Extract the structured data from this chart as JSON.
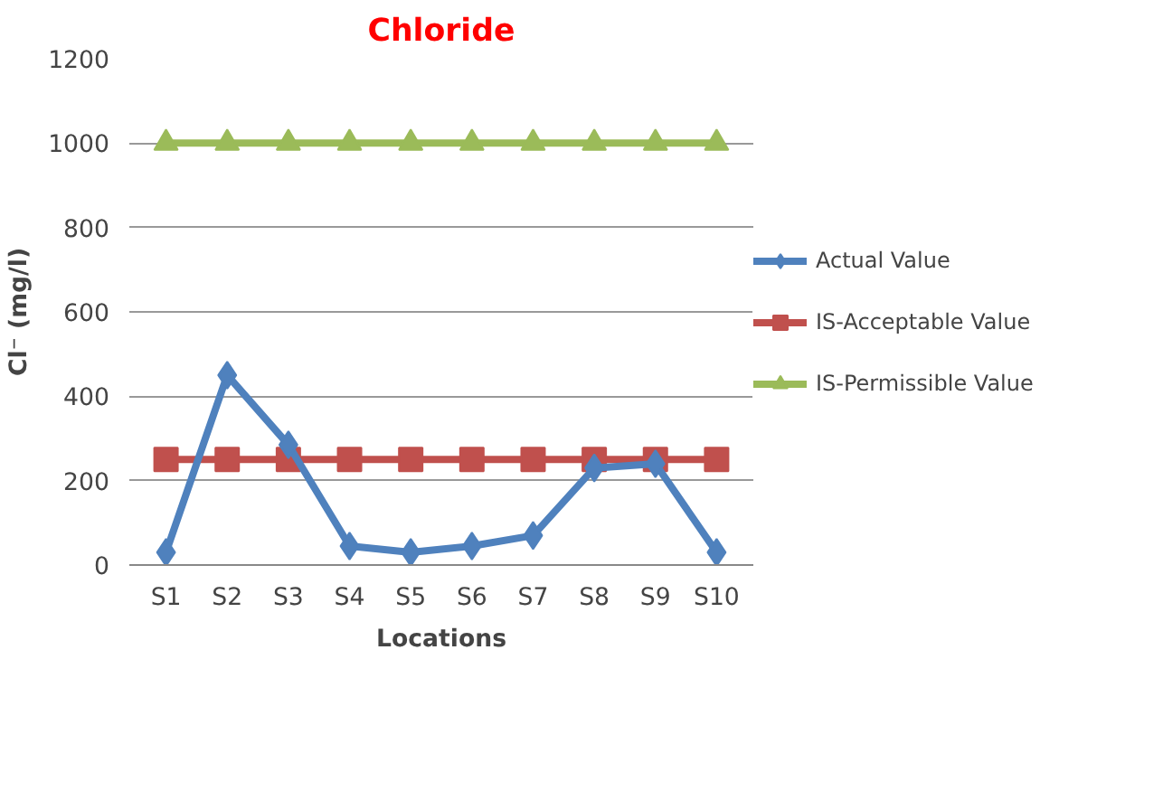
{
  "chart_data": {
    "type": "line",
    "title": "Chloride",
    "xlabel": "Locations",
    "ylabel": "Cl⁻ (mg/l)",
    "categories": [
      "S1",
      "S2",
      "S3",
      "S4",
      "S5",
      "S6",
      "S7",
      "S8",
      "S9",
      "S10"
    ],
    "ylim": [
      0,
      1200
    ],
    "yticks": [
      0,
      200,
      400,
      600,
      800,
      1000,
      1200
    ],
    "grid": "y",
    "legend": "right",
    "series": [
      {
        "name": "Actual Value",
        "color": "#4f81bd",
        "marker": "diamond",
        "values": [
          30,
          450,
          285,
          45,
          30,
          45,
          70,
          230,
          240,
          30
        ]
      },
      {
        "name": "IS-Acceptable Value",
        "color": "#c0504d",
        "marker": "square",
        "values": [
          250,
          250,
          250,
          250,
          250,
          250,
          250,
          250,
          250,
          250
        ]
      },
      {
        "name": "IS-Permissible Value",
        "color": "#9bbb59",
        "marker": "triangle",
        "values": [
          1000,
          1000,
          1000,
          1000,
          1000,
          1000,
          1000,
          1000,
          1000,
          1000
        ]
      }
    ]
  }
}
